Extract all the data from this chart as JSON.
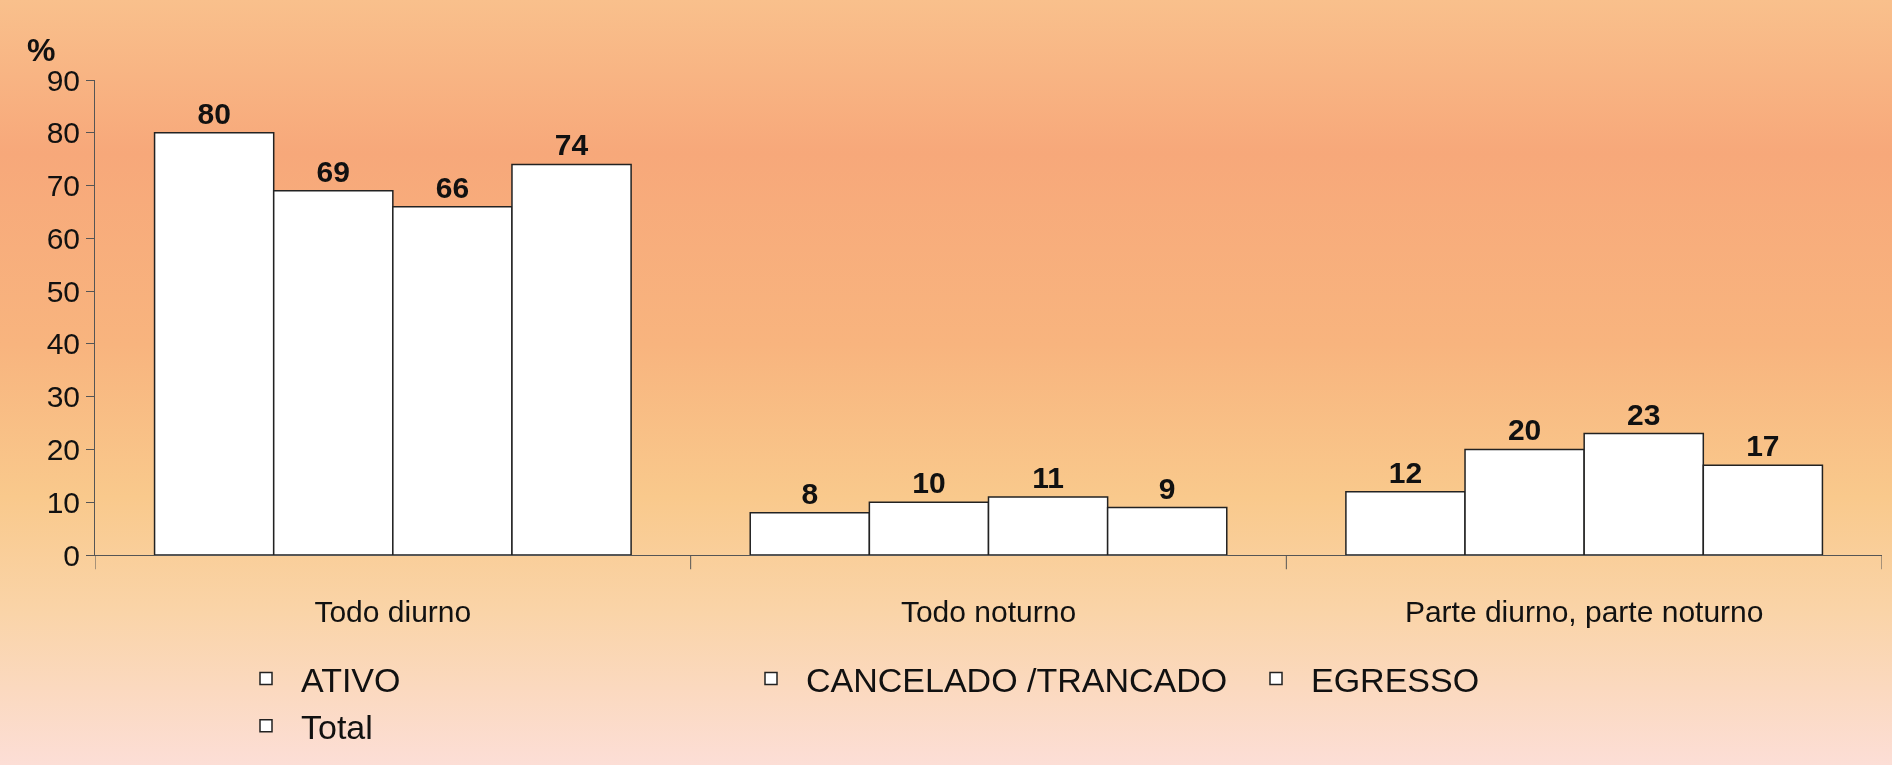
{
  "chart_data": {
    "type": "bar",
    "ylabel": "%",
    "categories": [
      "Todo diurno",
      "Todo noturno",
      "Parte diurno, parte noturno"
    ],
    "series": [
      {
        "name": "ATIVO",
        "color": "#ffffff",
        "values": [
          80,
          8,
          12
        ]
      },
      {
        "name": "CANCELADO /TRANCADO",
        "color": "#ffffff",
        "values": [
          69,
          10,
          20
        ]
      },
      {
        "name": "EGRESSO",
        "color": "#ffffff",
        "values": [
          66,
          11,
          23
        ]
      },
      {
        "name": "Total",
        "color": "#ffffff",
        "values": [
          74,
          9,
          17
        ]
      }
    ],
    "ylim": [
      0,
      90
    ],
    "yticks": [
      0,
      10,
      20,
      30,
      40,
      50,
      60,
      70,
      80,
      90
    ],
    "data_labels": true,
    "grid": false,
    "legend": "bottom"
  }
}
